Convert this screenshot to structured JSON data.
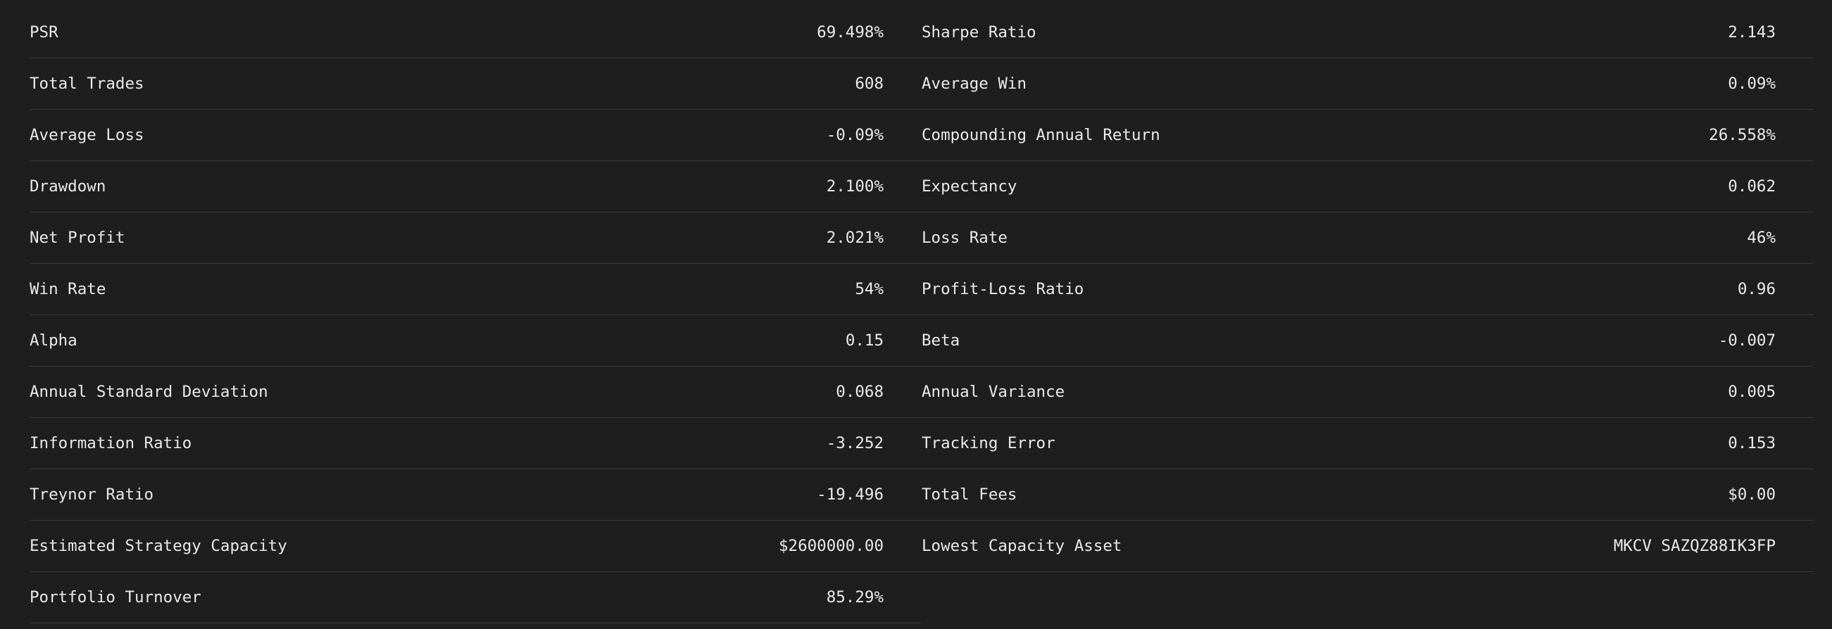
{
  "left": [
    {
      "label": "PSR",
      "value": "69.498%"
    },
    {
      "label": "Total Trades",
      "value": "608"
    },
    {
      "label": "Average Loss",
      "value": "-0.09%"
    },
    {
      "label": "Drawdown",
      "value": "2.100%"
    },
    {
      "label": "Net Profit",
      "value": "2.021%"
    },
    {
      "label": "Win Rate",
      "value": "54%"
    },
    {
      "label": "Alpha",
      "value": "0.15"
    },
    {
      "label": "Annual Standard Deviation",
      "value": "0.068"
    },
    {
      "label": "Information Ratio",
      "value": "-3.252"
    },
    {
      "label": "Treynor Ratio",
      "value": "-19.496"
    },
    {
      "label": "Estimated Strategy Capacity",
      "value": "$2600000.00"
    },
    {
      "label": "Portfolio Turnover",
      "value": "85.29%"
    }
  ],
  "right": [
    {
      "label": "Sharpe Ratio",
      "value": "2.143"
    },
    {
      "label": "Average Win",
      "value": "0.09%"
    },
    {
      "label": "Compounding Annual Return",
      "value": "26.558%"
    },
    {
      "label": "Expectancy",
      "value": "0.062"
    },
    {
      "label": "Loss Rate",
      "value": "46%"
    },
    {
      "label": "Profit-Loss Ratio",
      "value": "0.96"
    },
    {
      "label": "Beta",
      "value": "-0.007"
    },
    {
      "label": "Annual Variance",
      "value": "0.005"
    },
    {
      "label": "Tracking Error",
      "value": "0.153"
    },
    {
      "label": "Total Fees",
      "value": "$0.00"
    },
    {
      "label": "Lowest Capacity Asset",
      "value": "MKCV SAZQZ88IK3FP"
    }
  ]
}
